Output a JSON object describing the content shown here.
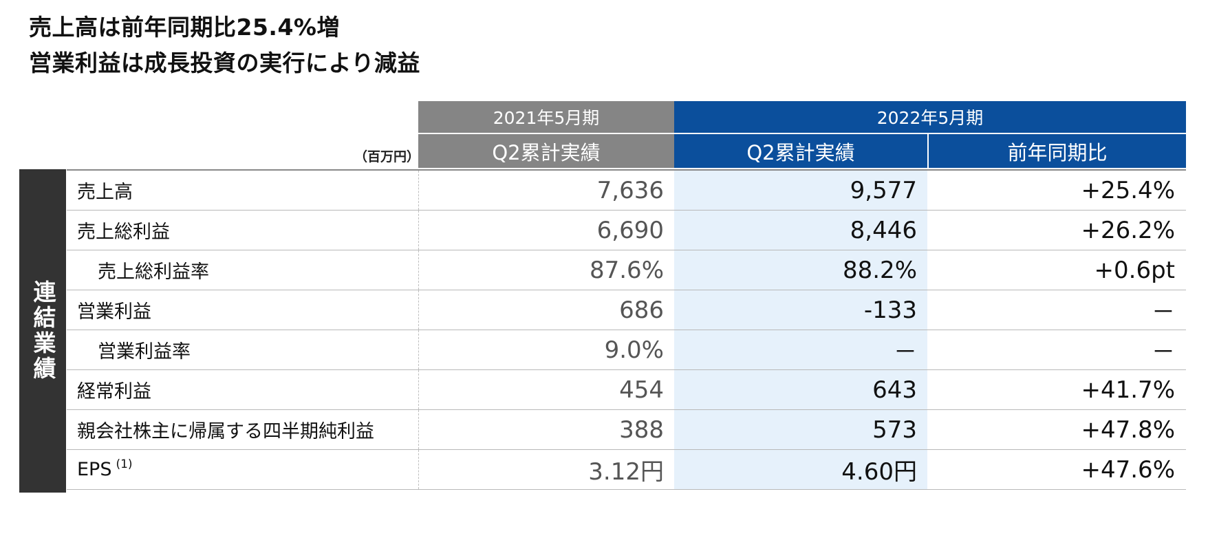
{
  "headline": {
    "line1": "売上高は前年同期比25.4%増",
    "line2": "営業利益は成長投資の実行により減益"
  },
  "unit_label": "（百万円）",
  "header": {
    "prev_period": "2021年5月期",
    "cur_period": "2022年5月期",
    "prev_col": "Q2累計実績",
    "cur_col": "Q2累計実績",
    "yoy_col": "前年同期比"
  },
  "sidebar_label": "連結業績",
  "rows": [
    {
      "label": "売上高",
      "prev": "7,636",
      "cur": "9,577",
      "yoy": "+25.4%"
    },
    {
      "label": "売上総利益",
      "prev": "6,690",
      "cur": "8,446",
      "yoy": "+26.2%"
    },
    {
      "label": "売上総利益率",
      "prev": "87.6%",
      "cur": "88.2%",
      "yoy": "+0.6pt"
    },
    {
      "label": "営業利益",
      "prev": "686",
      "cur": "-133",
      "yoy": "－"
    },
    {
      "label": "営業利益率",
      "prev": "9.0%",
      "cur": "－",
      "yoy": "－"
    },
    {
      "label": "経常利益",
      "prev": "454",
      "cur": "643",
      "yoy": "+41.7%"
    },
    {
      "label": "親会社株主に帰属する四半期純利益",
      "prev": "388",
      "cur": "573",
      "yoy": "+47.8%"
    },
    {
      "label": "EPS",
      "label_sup": "(1)",
      "prev": "3.12円",
      "cur": "4.60円",
      "yoy": "+47.6%"
    }
  ],
  "colors": {
    "prev_header": "#858585",
    "cur_header": "#0b4f9c",
    "cur_column_bg": "#e6f1fb",
    "sidebar": "#333333"
  }
}
